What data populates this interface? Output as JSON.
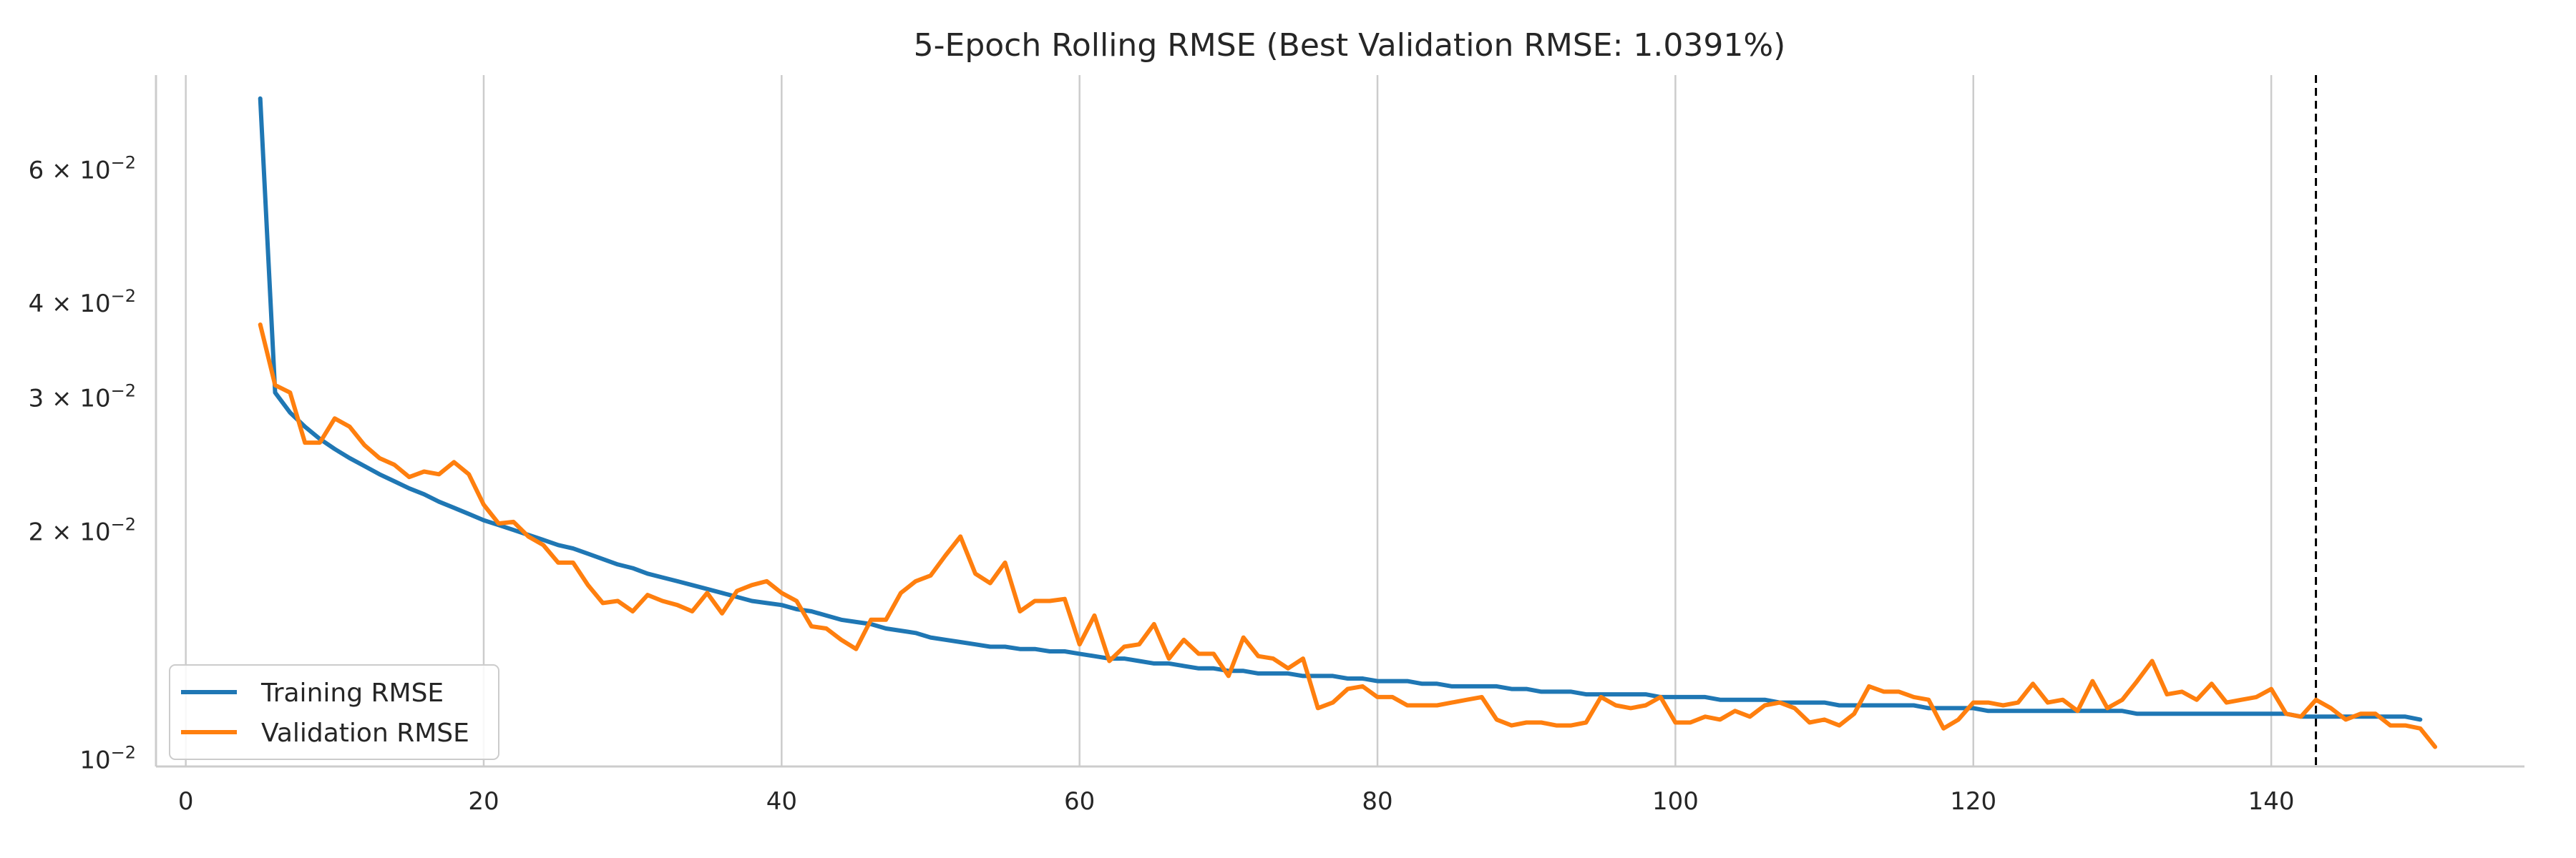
{
  "chart_data": {
    "type": "line",
    "title": "5-Epoch Rolling RMSE (Best Validation RMSE: 1.0391%)",
    "xlabel": "",
    "ylabel": "",
    "xlim": [
      -2,
      157
    ],
    "ylim": [
      0.0098,
      0.08
    ],
    "yscale": "log",
    "x_ticks": [
      0,
      20,
      40,
      60,
      80,
      100,
      120,
      140
    ],
    "x_tick_labels": [
      "0",
      "20",
      "40",
      "60",
      "80",
      "100",
      "120",
      "140"
    ],
    "y_ticks": [
      0.01,
      0.02,
      0.03,
      0.04,
      0.06
    ],
    "y_tick_labels": [
      {
        "base": "10",
        "exp": "−2"
      },
      {
        "base": "2 × 10",
        "exp": "−2"
      },
      {
        "base": "3 × 10",
        "exp": "−2"
      },
      {
        "base": "4 × 10",
        "exp": "−2"
      },
      {
        "base": "6 × 10",
        "exp": "−2"
      }
    ],
    "grid": {
      "x": true,
      "y": false
    },
    "legend_position": "lower-left",
    "best_epoch": 143,
    "x_start": 5,
    "x_end": 150,
    "series": [
      {
        "name": "Training RMSE",
        "color": "#1f77b4",
        "values": [
          0.0745,
          0.0305,
          0.0287,
          0.0275,
          0.0265,
          0.0257,
          0.025,
          0.0244,
          0.0238,
          0.0233,
          0.0228,
          0.0224,
          0.0219,
          0.0215,
          0.0211,
          0.0207,
          0.0204,
          0.0201,
          0.0198,
          0.0195,
          0.0192,
          0.019,
          0.0187,
          0.0184,
          0.0181,
          0.0179,
          0.0176,
          0.0174,
          0.0172,
          0.017,
          0.0168,
          0.0166,
          0.0164,
          0.0162,
          0.0161,
          0.016,
          0.0158,
          0.0157,
          0.0155,
          0.0153,
          0.0152,
          0.0151,
          0.0149,
          0.0148,
          0.0147,
          0.0145,
          0.0144,
          0.0143,
          0.0142,
          0.0141,
          0.0141,
          0.014,
          0.014,
          0.0139,
          0.0139,
          0.0138,
          0.0137,
          0.0136,
          0.0136,
          0.0135,
          0.0134,
          0.0134,
          0.0133,
          0.0132,
          0.0132,
          0.0131,
          0.0131,
          0.013,
          0.013,
          0.013,
          0.0129,
          0.0129,
          0.0129,
          0.0128,
          0.0128,
          0.0127,
          0.0127,
          0.0127,
          0.0126,
          0.0126,
          0.0125,
          0.0125,
          0.0125,
          0.0125,
          0.0124,
          0.0124,
          0.0123,
          0.0123,
          0.0123,
          0.0122,
          0.0122,
          0.0122,
          0.0122,
          0.0122,
          0.0121,
          0.0121,
          0.0121,
          0.0121,
          0.012,
          0.012,
          0.012,
          0.012,
          0.0119,
          0.0119,
          0.0119,
          0.0119,
          0.0118,
          0.0118,
          0.0118,
          0.0118,
          0.0118,
          0.0118,
          0.0117,
          0.0117,
          0.0117,
          0.0117,
          0.0116,
          0.0116,
          0.0116,
          0.0116,
          0.0116,
          0.0116,
          0.0116,
          0.0116,
          0.0116,
          0.0116,
          0.0115,
          0.0115,
          0.0115,
          0.0115,
          0.0115,
          0.0115,
          0.0115,
          0.0115,
          0.0115,
          0.0115,
          0.0115,
          0.0114,
          0.0114,
          0.0114,
          0.0114,
          0.0114,
          0.0114,
          0.0114,
          0.0114,
          0.0113
        ]
      },
      {
        "name": "Validation RMSE",
        "color": "#ff7f0e",
        "values": [
          0.0375,
          0.0312,
          0.0305,
          0.0262,
          0.0262,
          0.0282,
          0.0275,
          0.026,
          0.025,
          0.0245,
          0.0236,
          0.024,
          0.0238,
          0.0247,
          0.0238,
          0.0217,
          0.0205,
          0.0206,
          0.0197,
          0.0192,
          0.0182,
          0.0182,
          0.017,
          0.0161,
          0.0162,
          0.0157,
          0.0165,
          0.0162,
          0.016,
          0.0157,
          0.0166,
          0.0156,
          0.0167,
          0.017,
          0.0172,
          0.0166,
          0.0162,
          0.015,
          0.0149,
          0.0144,
          0.014,
          0.0153,
          0.0153,
          0.0166,
          0.0172,
          0.0175,
          0.0186,
          0.0197,
          0.0176,
          0.0171,
          0.0182,
          0.0157,
          0.0162,
          0.0162,
          0.0163,
          0.0142,
          0.0155,
          0.0135,
          0.0141,
          0.0142,
          0.0151,
          0.0136,
          0.0144,
          0.0138,
          0.0138,
          0.0129,
          0.0145,
          0.0137,
          0.0136,
          0.0132,
          0.0136,
          0.0117,
          0.0119,
          0.0124,
          0.0125,
          0.0121,
          0.0121,
          0.0118,
          0.0118,
          0.0118,
          0.0119,
          0.012,
          0.0121,
          0.0113,
          0.0111,
          0.0112,
          0.0112,
          0.0111,
          0.0111,
          0.0112,
          0.0121,
          0.0118,
          0.0117,
          0.0118,
          0.0121,
          0.0112,
          0.0112,
          0.0114,
          0.0113,
          0.0116,
          0.0114,
          0.0118,
          0.0119,
          0.0117,
          0.0112,
          0.0113,
          0.0111,
          0.0115,
          0.0125,
          0.0123,
          0.0123,
          0.0121,
          0.012,
          0.011,
          0.0113,
          0.0119,
          0.0119,
          0.0118,
          0.0119,
          0.0126,
          0.0119,
          0.012,
          0.0116,
          0.0127,
          0.0117,
          0.012,
          0.0127,
          0.0135,
          0.0122,
          0.0123,
          0.012,
          0.0126,
          0.0119,
          0.012,
          0.0121,
          0.0124,
          0.0115,
          0.0114,
          0.012,
          0.0117,
          0.0113,
          0.0115,
          0.0115,
          0.0111,
          0.0111,
          0.011,
          0.0104
        ]
      }
    ]
  }
}
